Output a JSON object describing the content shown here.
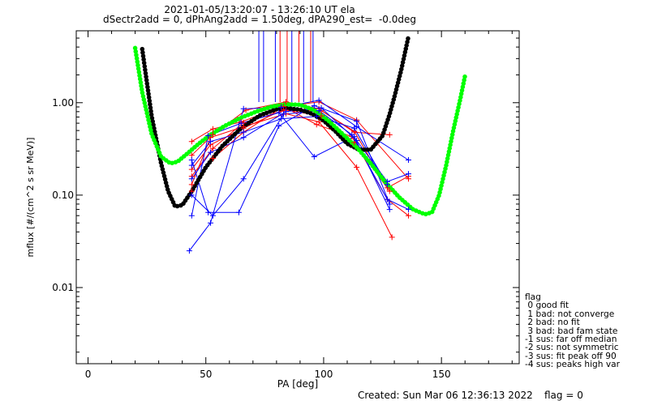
{
  "chart_data": {
    "type": "line",
    "title": "2021-01-05/13:20:07 - 13:26:10 UT ela",
    "subtitle": "dSectr2add = 0, dPhAng2add = 1.50deg, dPA290_est=  -0.0deg",
    "xlabel": "PA [deg]",
    "ylabel": "mflux [#/(cm^2 s sr MeV)]",
    "xlim": [
      -5,
      183
    ],
    "ylim": [
      0.0015,
      6
    ],
    "yscale": "log",
    "x_ticks": [
      0,
      50,
      100,
      150
    ],
    "x_tick_labels": [
      "0",
      "50",
      "100",
      "150"
    ],
    "y_ticks": [
      0.01,
      0.1,
      1
    ],
    "y_tick_labels": [
      "0.01",
      "0.10",
      "1.00"
    ],
    "grid": false,
    "colors": {
      "red": "#ff0000",
      "blue": "#0000ff",
      "black": "#000000",
      "green": "#00ff00"
    },
    "vertical_lines": [
      {
        "x": 72.5,
        "color": "#0000ff"
      },
      {
        "x": 74.5,
        "color": "#0000ff"
      },
      {
        "x": 79.5,
        "color": "#0000ff"
      },
      {
        "x": 81.5,
        "color": "#ff0000"
      },
      {
        "x": 84.5,
        "color": "#ff0000"
      },
      {
        "x": 86.5,
        "color": "#0000ff"
      },
      {
        "x": 89.5,
        "color": "#ff0000"
      },
      {
        "x": 91.5,
        "color": "#0000ff"
      },
      {
        "x": 94.5,
        "color": "#ff0000"
      },
      {
        "x": 95.5,
        "color": "#0000ff"
      }
    ],
    "series": [
      {
        "color": "#ff0000",
        "x": [
          44,
          53,
          65,
          82,
          98,
          114,
          136
        ],
        "y": [
          0.38,
          0.52,
          0.62,
          0.9,
          1.02,
          0.65,
          0.15
        ]
      },
      {
        "color": "#ff0000",
        "x": [
          44,
          53,
          67,
          84,
          98,
          113,
          128
        ],
        "y": [
          0.27,
          0.45,
          0.83,
          1.02,
          0.86,
          0.48,
          0.45
        ]
      },
      {
        "color": "#ff0000",
        "x": [
          44,
          52,
          66,
          83,
          99,
          113,
          128
        ],
        "y": [
          0.19,
          0.35,
          0.53,
          0.84,
          0.72,
          0.37,
          0.11
        ]
      },
      {
        "color": "#ff0000",
        "x": [
          44,
          52,
          66,
          84,
          98,
          114,
          129
        ],
        "y": [
          0.13,
          0.42,
          0.55,
          0.76,
          0.62,
          0.2,
          0.035
        ]
      },
      {
        "color": "#ff0000",
        "x": [
          44,
          53,
          66,
          83,
          97,
          112,
          127,
          136
        ],
        "y": [
          0.11,
          0.25,
          0.48,
          0.91,
          0.58,
          0.43,
          0.09,
          0.06
        ]
      },
      {
        "color": "#ff0000",
        "x": [
          44,
          53,
          66,
          84,
          99,
          113,
          127,
          136
        ],
        "y": [
          0.16,
          0.32,
          0.61,
          0.83,
          0.82,
          0.49,
          0.12,
          0.16
        ]
      },
      {
        "color": "#0000ff",
        "x": [
          43,
          52,
          66,
          82,
          98,
          114,
          136
        ],
        "y": [
          0.025,
          0.05,
          0.86,
          0.89,
          1.06,
          0.55,
          0.24
        ]
      },
      {
        "color": "#0000ff",
        "x": [
          44,
          51,
          65,
          81,
          96,
          113,
          128
        ],
        "y": [
          0.06,
          0.44,
          0.6,
          0.78,
          0.26,
          0.43,
          0.07
        ]
      },
      {
        "color": "#0000ff",
        "x": [
          44,
          52,
          66,
          82,
          97,
          113,
          127
        ],
        "y": [
          0.21,
          0.38,
          0.48,
          0.67,
          0.71,
          0.53,
          0.13
        ]
      },
      {
        "color": "#0000ff",
        "x": [
          44,
          51,
          64,
          81,
          96,
          114,
          128
        ],
        "y": [
          0.24,
          0.065,
          0.065,
          0.56,
          0.93,
          0.63,
          0.08
        ]
      },
      {
        "color": "#0000ff",
        "x": [
          44,
          53,
          66,
          83,
          98,
          112,
          127,
          136
        ],
        "y": [
          0.1,
          0.06,
          0.15,
          0.75,
          0.82,
          0.45,
          0.09,
          0.07
        ]
      },
      {
        "color": "#0000ff",
        "x": [
          44,
          52,
          66,
          84,
          99,
          114,
          127,
          136
        ],
        "y": [
          0.15,
          0.29,
          0.42,
          0.8,
          0.88,
          0.39,
          0.14,
          0.17
        ]
      }
    ],
    "fit_curves": [
      {
        "color": "#000000",
        "x": [
          23,
          27,
          31,
          34,
          37,
          40,
          44,
          50,
          57,
          65,
          73,
          80,
          85,
          90,
          95,
          100,
          105,
          110,
          115,
          120,
          125,
          128,
          130,
          133,
          136
        ],
        "y": [
          3.8,
          0.72,
          0.22,
          0.11,
          0.075,
          0.078,
          0.11,
          0.2,
          0.34,
          0.53,
          0.73,
          0.85,
          0.87,
          0.84,
          0.76,
          0.64,
          0.49,
          0.36,
          0.31,
          0.31,
          0.44,
          0.75,
          1.15,
          2.3,
          5.2
        ]
      },
      {
        "color": "#00ff00",
        "x": [
          20,
          23,
          27,
          31,
          35,
          38,
          42,
          47,
          52,
          58,
          65,
          72,
          78,
          84,
          90,
          96,
          102,
          108,
          114,
          120,
          126,
          132,
          138,
          143,
          146,
          149,
          152,
          155,
          158,
          160
        ],
        "y": [
          3.9,
          1.3,
          0.46,
          0.26,
          0.22,
          0.23,
          0.28,
          0.36,
          0.45,
          0.56,
          0.69,
          0.81,
          0.91,
          0.96,
          0.95,
          0.83,
          0.64,
          0.46,
          0.33,
          0.22,
          0.14,
          0.095,
          0.07,
          0.062,
          0.065,
          0.1,
          0.21,
          0.5,
          1.1,
          1.95
        ]
      }
    ]
  },
  "legend": {
    "title": "flag",
    "items": [
      " 0 good fit",
      " 1 bad: not converge",
      " 2 bad: no fit",
      " 3 bad: bad fam state",
      "-1 sus: far off median",
      "-2 sus: not symmetric",
      "-3 sus: fit peak off 90",
      "-4 sus: peaks high var"
    ]
  },
  "footer": {
    "created": "Created: Sun Mar 06 12:36:13 2022",
    "flag": "flag = 0"
  }
}
